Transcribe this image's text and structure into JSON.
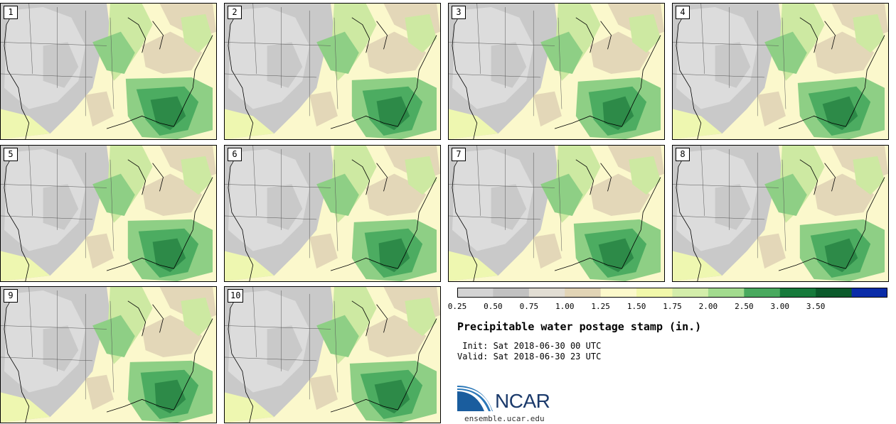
{
  "panels": [
    {
      "label": "1"
    },
    {
      "label": "2"
    },
    {
      "label": "3"
    },
    {
      "label": "4"
    },
    {
      "label": "5"
    },
    {
      "label": "6"
    },
    {
      "label": "7"
    },
    {
      "label": "8"
    },
    {
      "label": "9"
    },
    {
      "label": "10"
    }
  ],
  "colorbar": {
    "ticks": [
      "0.25",
      "0.50",
      "0.75",
      "1.00",
      "1.25",
      "1.50",
      "1.75",
      "2.00",
      "2.50",
      "3.00",
      "3.50"
    ],
    "colors": [
      "#d3d3d3",
      "#c1c1c1",
      "#e1ddd3",
      "#e1d4b5",
      "#fcf9cb",
      "#f1f8aa",
      "#d3edaa",
      "#a2db8e",
      "#49a95e",
      "#167a3b",
      "#0b5a2b",
      "#0a2ca8"
    ]
  },
  "title": "Precipitable water postage stamp (in.)",
  "init": " Init: Sat 2018-06-30 00 UTC",
  "valid": "Valid: Sat 2018-06-30 23 UTC",
  "logo": {
    "text": "NCAR",
    "url": "ensemble.ucar.edu"
  },
  "map_colors": {
    "gray": "#c9c9c9",
    "lightgray": "#dcdcdc",
    "tan": "#e3d7b8",
    "cream": "#fbf8cc",
    "yellowgreen": "#eef7b0",
    "lightgreen": "#cde9a2",
    "medgreen": "#8ecf85",
    "green": "#4cac61",
    "darkgreen": "#2d8a48"
  }
}
